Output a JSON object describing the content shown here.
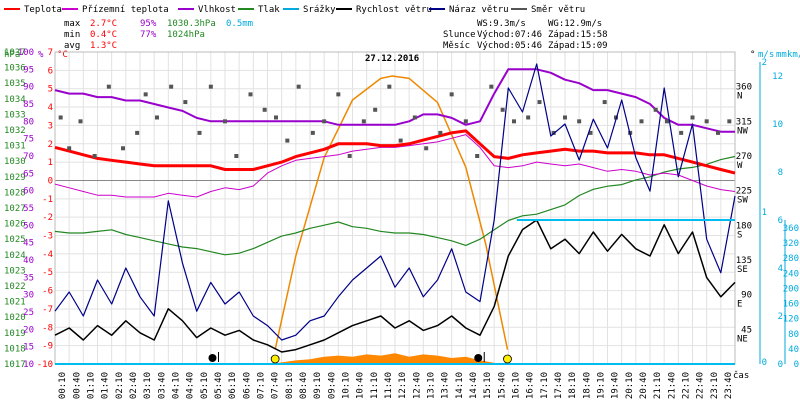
{
  "chart_data": {
    "type": "line",
    "title": "27.12.2016",
    "xlabel": "čas",
    "legend": [
      {
        "label": "Teplota",
        "color": "#ff0000"
      },
      {
        "label": "Přízemní teplota",
        "color": "#cc00cc"
      },
      {
        "label": "Vlhkost",
        "color": "#9900cc"
      },
      {
        "label": "Tlak",
        "color": "#228822"
      },
      {
        "label": "Srážky",
        "color": "#00aadd"
      },
      {
        "label": "Rychlost větru",
        "color": "#000000"
      },
      {
        "label": "Náraz větru",
        "color": "#000088"
      },
      {
        "label": "Směr větru",
        "color": "#555555"
      }
    ],
    "stats": {
      "max_label": "max",
      "max_temp": "2.7°C",
      "max_hum": "95%",
      "max_press": "1030.3hPa",
      "max_rain": "0.5mm",
      "min_label": "min",
      "min_temp": "0.4°C",
      "min_hum": "77%",
      "min_press": "1024hPa",
      "avg_label": "avg",
      "avg_temp": "1.3°C"
    },
    "wind_info": {
      "ws": "WS:9.3m/s",
      "wg": "WG:12.9m/s"
    },
    "sun": {
      "label": "Slunce",
      "rise": "Východ:07:46",
      "set": "Západ:15:58"
    },
    "moon": {
      "label": "Měsíc",
      "rise": "Východ:05:46",
      "set": "Západ:15:09"
    },
    "axis_units": {
      "hpa": "hPa",
      "pct": "%",
      "degc": "°C",
      "deg": "°",
      "ms": "m/s",
      "mm": "mm",
      "kmh": "km/h"
    },
    "x_ticks": [
      "00:10",
      "00:40",
      "01:10",
      "01:40",
      "02:10",
      "02:40",
      "03:10",
      "03:40",
      "04:10",
      "04:40",
      "05:10",
      "05:40",
      "06:10",
      "06:40",
      "07:10",
      "07:40",
      "08:10",
      "08:40",
      "09:10",
      "09:40",
      "10:10",
      "10:40",
      "11:10",
      "11:40",
      "12:10",
      "12:40",
      "13:10",
      "13:40",
      "14:10",
      "14:40",
      "15:10",
      "15:40",
      "16:10",
      "16:40",
      "17:10",
      "17:40",
      "18:10",
      "18:40",
      "19:10",
      "19:40",
      "20:10",
      "20:40",
      "21:10",
      "21:40",
      "22:10",
      "22:40",
      "23:10",
      "23:40"
    ],
    "y_temp_ticks": [
      "7",
      "6",
      "5",
      "4",
      "3",
      "2",
      "1",
      "0",
      "-1",
      "-2",
      "-3",
      "-4",
      "-5",
      "-6",
      "-7",
      "-8",
      "-9",
      "-10"
    ],
    "y_hum_ticks": [
      "100",
      "95",
      "90",
      "85",
      "80",
      "75",
      "70",
      "65",
      "60",
      "55",
      "50",
      "45",
      "40",
      "35",
      "30",
      "25",
      "20",
      "15",
      "10"
    ],
    "y_press_ticks": [
      "1037",
      "1036",
      "1035",
      "1034",
      "1033",
      "1032",
      "1031",
      "1030",
      "1029",
      "1028",
      "1027",
      "1026",
      "1025",
      "1024",
      "1023",
      "1022",
      "1021",
      "1020",
      "1019",
      "1018",
      "1017"
    ],
    "y_dir_ticks": [
      {
        "v": 360,
        "label": "360",
        "dir": "N"
      },
      {
        "v": 315,
        "label": "315",
        "dir": "NW"
      },
      {
        "v": 270,
        "label": "270",
        "dir": "W"
      },
      {
        "v": 225,
        "label": "225",
        "dir": "SW"
      },
      {
        "v": 180,
        "label": "180",
        "dir": "S"
      },
      {
        "v": 135,
        "label": "135",
        "dir": "SE"
      },
      {
        "v": 90,
        "label": "90",
        "dir": "E"
      },
      {
        "v": 45,
        "label": "45",
        "dir": "NE"
      }
    ],
    "y_ms_ticks": [
      "2",
      "1",
      "0"
    ],
    "y_mm_ticks": [
      "12",
      "10",
      "8",
      "6",
      "4",
      "2",
      "0"
    ],
    "y_kmh_ticks": [
      "360",
      "320",
      "280",
      "240",
      "200",
      "160",
      "120",
      "80",
      "40",
      "0"
    ],
    "xlim": [
      0,
      24
    ],
    "temp_lim": [
      -10,
      7
    ],
    "hum_lim": [
      10,
      100
    ],
    "press_lim": [
      1017,
      1037
    ],
    "dir_lim": [
      0,
      405
    ],
    "wind_lim": [
      0,
      13
    ],
    "series": {
      "temp": {
        "name": "Teplota",
        "color": "#ff0000",
        "x": [
          0,
          0.5,
          1,
          1.5,
          2,
          2.5,
          3,
          3.5,
          4,
          4.5,
          5,
          5.5,
          6,
          6.5,
          7,
          7.5,
          8,
          8.5,
          9,
          9.5,
          10,
          10.5,
          11,
          11.5,
          12,
          12.5,
          13,
          13.5,
          14,
          14.5,
          15,
          15.5,
          16,
          16.5,
          17,
          17.5,
          18,
          18.5,
          19,
          19.5,
          20,
          20.5,
          21,
          21.5,
          22,
          22.5,
          23,
          23.5,
          24
        ],
        "values": [
          1.8,
          1.6,
          1.4,
          1.2,
          1.1,
          1.0,
          0.9,
          0.8,
          0.8,
          0.8,
          0.8,
          0.8,
          0.6,
          0.6,
          0.6,
          0.8,
          1.0,
          1.3,
          1.5,
          1.7,
          2.0,
          2.0,
          2.0,
          1.9,
          1.9,
          2.0,
          2.2,
          2.4,
          2.6,
          2.7,
          2.0,
          1.3,
          1.2,
          1.4,
          1.5,
          1.6,
          1.7,
          1.6,
          1.6,
          1.5,
          1.5,
          1.5,
          1.4,
          1.4,
          1.2,
          1.0,
          0.8,
          0.6,
          0.4
        ]
      },
      "ground": {
        "name": "Přízemní teplota",
        "color": "#cc00cc",
        "x": [
          0,
          0.5,
          1,
          1.5,
          2,
          2.5,
          3,
          3.5,
          4,
          4.5,
          5,
          5.5,
          6,
          6.5,
          7,
          7.5,
          8,
          8.5,
          9,
          9.5,
          10,
          10.5,
          11,
          11.5,
          12,
          12.5,
          13,
          13.5,
          14,
          14.5,
          15,
          15.5,
          16,
          16.5,
          17,
          17.5,
          18,
          18.5,
          19,
          19.5,
          20,
          20.5,
          21,
          21.5,
          22,
          22.5,
          23,
          23.5,
          24
        ],
        "values": [
          -0.2,
          -0.4,
          -0.6,
          -0.8,
          -0.8,
          -0.9,
          -0.9,
          -0.9,
          -0.7,
          -0.8,
          -0.9,
          -0.6,
          -0.4,
          -0.5,
          -0.3,
          0.4,
          0.8,
          1.1,
          1.2,
          1.3,
          1.4,
          1.6,
          1.7,
          1.8,
          1.8,
          1.9,
          2.0,
          2.1,
          2.3,
          2.5,
          1.8,
          0.8,
          0.7,
          0.8,
          1.0,
          0.9,
          0.8,
          0.9,
          0.7,
          0.5,
          0.6,
          0.5,
          0.3,
          0.4,
          0.3,
          0.0,
          -0.3,
          -0.5,
          -0.6
        ]
      },
      "hum": {
        "name": "Vlhkost",
        "color": "#9900cc",
        "x": [
          0,
          0.5,
          1,
          1.5,
          2,
          2.5,
          3,
          3.5,
          4,
          4.5,
          5,
          5.5,
          6,
          6.5,
          7,
          7.5,
          8,
          8.5,
          9,
          9.5,
          10,
          10.5,
          11,
          11.5,
          12,
          12.5,
          13,
          13.5,
          14,
          14.5,
          15,
          15.5,
          16,
          16.5,
          17,
          17.5,
          18,
          18.5,
          19,
          19.5,
          20,
          20.5,
          21,
          21.5,
          22,
          22.5,
          23,
          23.5,
          24
        ],
        "values": [
          89,
          88,
          88,
          87,
          87,
          86,
          86,
          85,
          84,
          83,
          81,
          80,
          80,
          80,
          80,
          80,
          80,
          80,
          80,
          80,
          79,
          79,
          79,
          79,
          79,
          80,
          82,
          82,
          81,
          79,
          80,
          88,
          95,
          95,
          95,
          94,
          92,
          91,
          89,
          89,
          88,
          87,
          85,
          81,
          79,
          79,
          78,
          77,
          77
        ]
      },
      "press": {
        "name": "Tlak",
        "color": "#228822",
        "x": [
          0,
          0.5,
          1,
          1.5,
          2,
          2.5,
          3,
          3.5,
          4,
          4.5,
          5,
          5.5,
          6,
          6.5,
          7,
          7.5,
          8,
          8.5,
          9,
          9.5,
          10,
          10.5,
          11,
          11.5,
          12,
          12.5,
          13,
          13.5,
          14,
          14.5,
          15,
          15.5,
          16,
          16.5,
          17,
          17.5,
          18,
          18.5,
          19,
          19.5,
          20,
          20.5,
          21,
          21.5,
          22,
          22.5,
          23,
          23.5,
          24
        ],
        "values": [
          1025.5,
          1025.4,
          1025.4,
          1025.5,
          1025.6,
          1025.3,
          1025.1,
          1024.9,
          1024.7,
          1024.5,
          1024.4,
          1024.2,
          1024.0,
          1024.1,
          1024.4,
          1024.8,
          1025.2,
          1025.4,
          1025.7,
          1025.9,
          1026.1,
          1025.8,
          1025.7,
          1025.5,
          1025.4,
          1025.4,
          1025.3,
          1025.1,
          1024.9,
          1024.6,
          1025.0,
          1025.6,
          1026.2,
          1026.5,
          1026.6,
          1026.9,
          1027.2,
          1027.8,
          1028.2,
          1028.4,
          1028.5,
          1028.8,
          1029.0,
          1029.3,
          1029.5,
          1029.6,
          1029.8,
          1030.1,
          1030.3
        ]
      },
      "sun": {
        "name": "Slunce",
        "color": "#ee8800",
        "x": [
          7.77,
          8.5,
          9.5,
          10.5,
          11.5,
          11.9,
          12.5,
          13.5,
          14.5,
          15.2,
          15.97
        ],
        "values": [
          0.6,
          4.5,
          8.6,
          11.0,
          11.9,
          12.0,
          11.9,
          10.9,
          8.2,
          5.0,
          0.6
        ]
      },
      "wind": {
        "name": "Rychlost větru",
        "color": "#000000",
        "x": [
          0,
          0.5,
          1,
          1.5,
          2,
          2.5,
          3,
          3.5,
          4,
          4.5,
          5,
          5.5,
          6,
          6.5,
          7,
          7.5,
          8,
          8.5,
          9,
          9.5,
          10,
          10.5,
          11,
          11.5,
          12,
          12.5,
          13,
          13.5,
          14,
          14.5,
          15,
          15.5,
          16,
          16.5,
          17,
          17.5,
          18,
          18.5,
          19,
          19.5,
          20,
          20.5,
          21,
          21.5,
          22,
          22.5,
          23,
          23.5,
          24
        ],
        "values": [
          1.2,
          1.5,
          1.0,
          1.6,
          1.2,
          1.8,
          1.3,
          1.0,
          2.3,
          1.8,
          1.1,
          1.5,
          1.2,
          1.4,
          1.0,
          0.8,
          0.5,
          0.6,
          0.8,
          1.0,
          1.3,
          1.6,
          1.8,
          2.0,
          1.5,
          1.8,
          1.4,
          1.6,
          2.0,
          1.5,
          1.2,
          2.4,
          4.5,
          5.6,
          6.0,
          4.8,
          5.2,
          4.6,
          5.5,
          4.7,
          5.4,
          4.8,
          4.5,
          5.8,
          4.6,
          5.5,
          3.6,
          2.8,
          3.4
        ]
      },
      "gust": {
        "name": "Náraz větru",
        "color": "#000088",
        "x": [
          0,
          0.5,
          1,
          1.5,
          2,
          2.5,
          3,
          3.5,
          4,
          4.5,
          5,
          5.5,
          6,
          6.5,
          7,
          7.5,
          8,
          8.5,
          9,
          9.5,
          10,
          10.5,
          11,
          11.5,
          12,
          12.5,
          13,
          13.5,
          14,
          14.5,
          15,
          15.5,
          16,
          16.5,
          17,
          17.5,
          18,
          18.5,
          19,
          19.5,
          20,
          20.5,
          21,
          21.5,
          22,
          22.5,
          23,
          23.5,
          24
        ],
        "values": [
          2.2,
          3.0,
          2.0,
          3.5,
          2.5,
          4.0,
          2.8,
          2.0,
          6.8,
          4.2,
          2.2,
          3.4,
          2.5,
          3.0,
          2.0,
          1.6,
          1.0,
          1.2,
          1.8,
          2.0,
          2.8,
          3.5,
          4.0,
          4.5,
          3.2,
          4.0,
          2.8,
          3.5,
          4.8,
          3.0,
          2.6,
          6.0,
          11.5,
          10.5,
          12.5,
          9.5,
          10.0,
          8.5,
          10.2,
          9.0,
          11.0,
          8.6,
          7.2,
          11.5,
          7.8,
          10.0,
          5.2,
          3.8,
          7.0
        ]
      },
      "dir_points": {
        "name": "Směr větru",
        "color": "#555555",
        "x": [
          0.2,
          0.5,
          0.9,
          1.4,
          1.9,
          2.4,
          2.9,
          3.2,
          3.6,
          4.1,
          4.6,
          5.1,
          5.5,
          6.0,
          6.4,
          6.9,
          7.4,
          7.8,
          8.2,
          8.6,
          9.1,
          9.5,
          10.0,
          10.4,
          10.9,
          11.3,
          11.8,
          12.2,
          12.7,
          13.1,
          13.6,
          14.0,
          14.5,
          14.9,
          15.4,
          15.8,
          16.2,
          16.7,
          17.1,
          17.6,
          18.0,
          18.5,
          18.9,
          19.4,
          19.8,
          20.3,
          20.7,
          21.2,
          21.6,
          22.1,
          22.5,
          23.0,
          23.4,
          23.8
        ],
        "values": [
          320,
          280,
          315,
          270,
          360,
          280,
          300,
          350,
          320,
          360,
          340,
          300,
          360,
          315,
          270,
          350,
          330,
          320,
          290,
          360,
          300,
          315,
          350,
          270,
          315,
          330,
          360,
          290,
          320,
          280,
          300,
          350,
          315,
          270,
          360,
          330,
          315,
          320,
          340,
          300,
          320,
          315,
          300,
          340,
          320,
          300,
          315,
          330,
          315,
          300,
          320,
          315,
          300,
          315
        ]
      },
      "rain": {
        "name": "Srážky",
        "values": [],
        "color": "#00aadd"
      }
    },
    "rain_level_mm": 0.5,
    "sun_area_note": "",
    "markers": [
      {
        "type": "moonrise",
        "x": 5.77
      },
      {
        "type": "sunrise",
        "x": 7.77
      },
      {
        "type": "moonset",
        "x": 15.15
      },
      {
        "type": "sunset",
        "x": 15.97
      }
    ],
    "wind_hline_ms": 6.0
  }
}
